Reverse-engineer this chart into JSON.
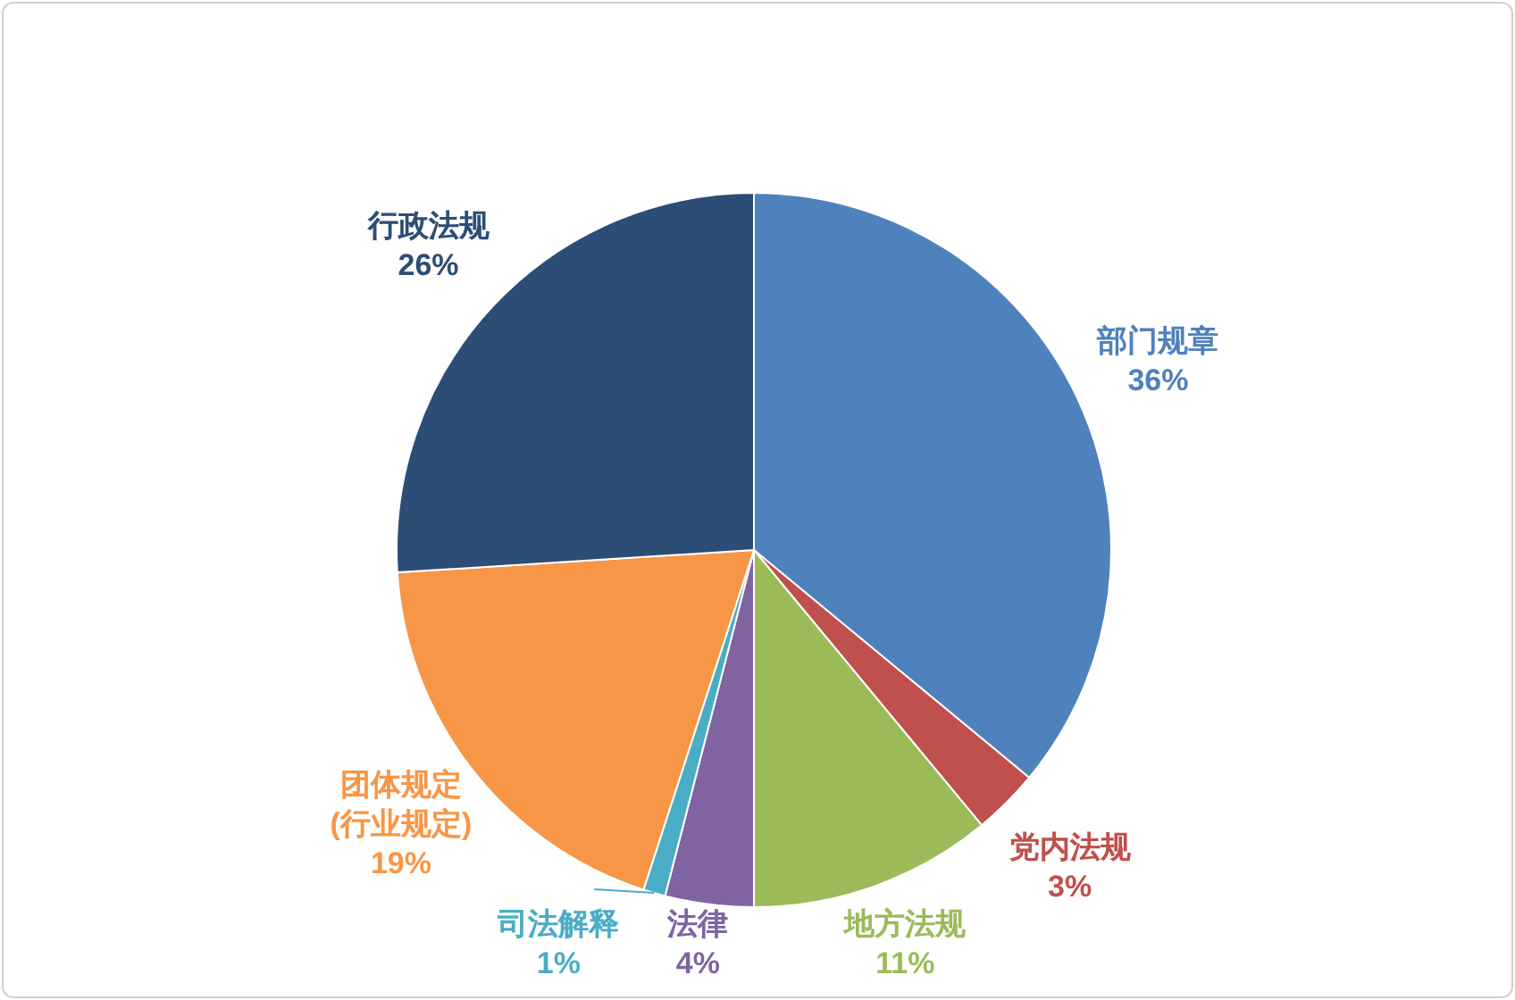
{
  "chart_data": {
    "type": "pie",
    "categories": [
      "部门规章",
      "党内法规",
      "地方法规",
      "法律",
      "司法解释",
      "团体规定 (行业规定)",
      "行政法规"
    ],
    "values": [
      36,
      3,
      11,
      4,
      1,
      19,
      26
    ],
    "value_labels": [
      "36%",
      "3%",
      "11%",
      "4%",
      "1%",
      "19%",
      "26%"
    ],
    "colors": [
      "#4f81bd",
      "#c0504d",
      "#9bbb59",
      "#8064a2",
      "#4bacc6",
      "#f79646",
      "#2c4d75"
    ],
    "legend": false
  }
}
